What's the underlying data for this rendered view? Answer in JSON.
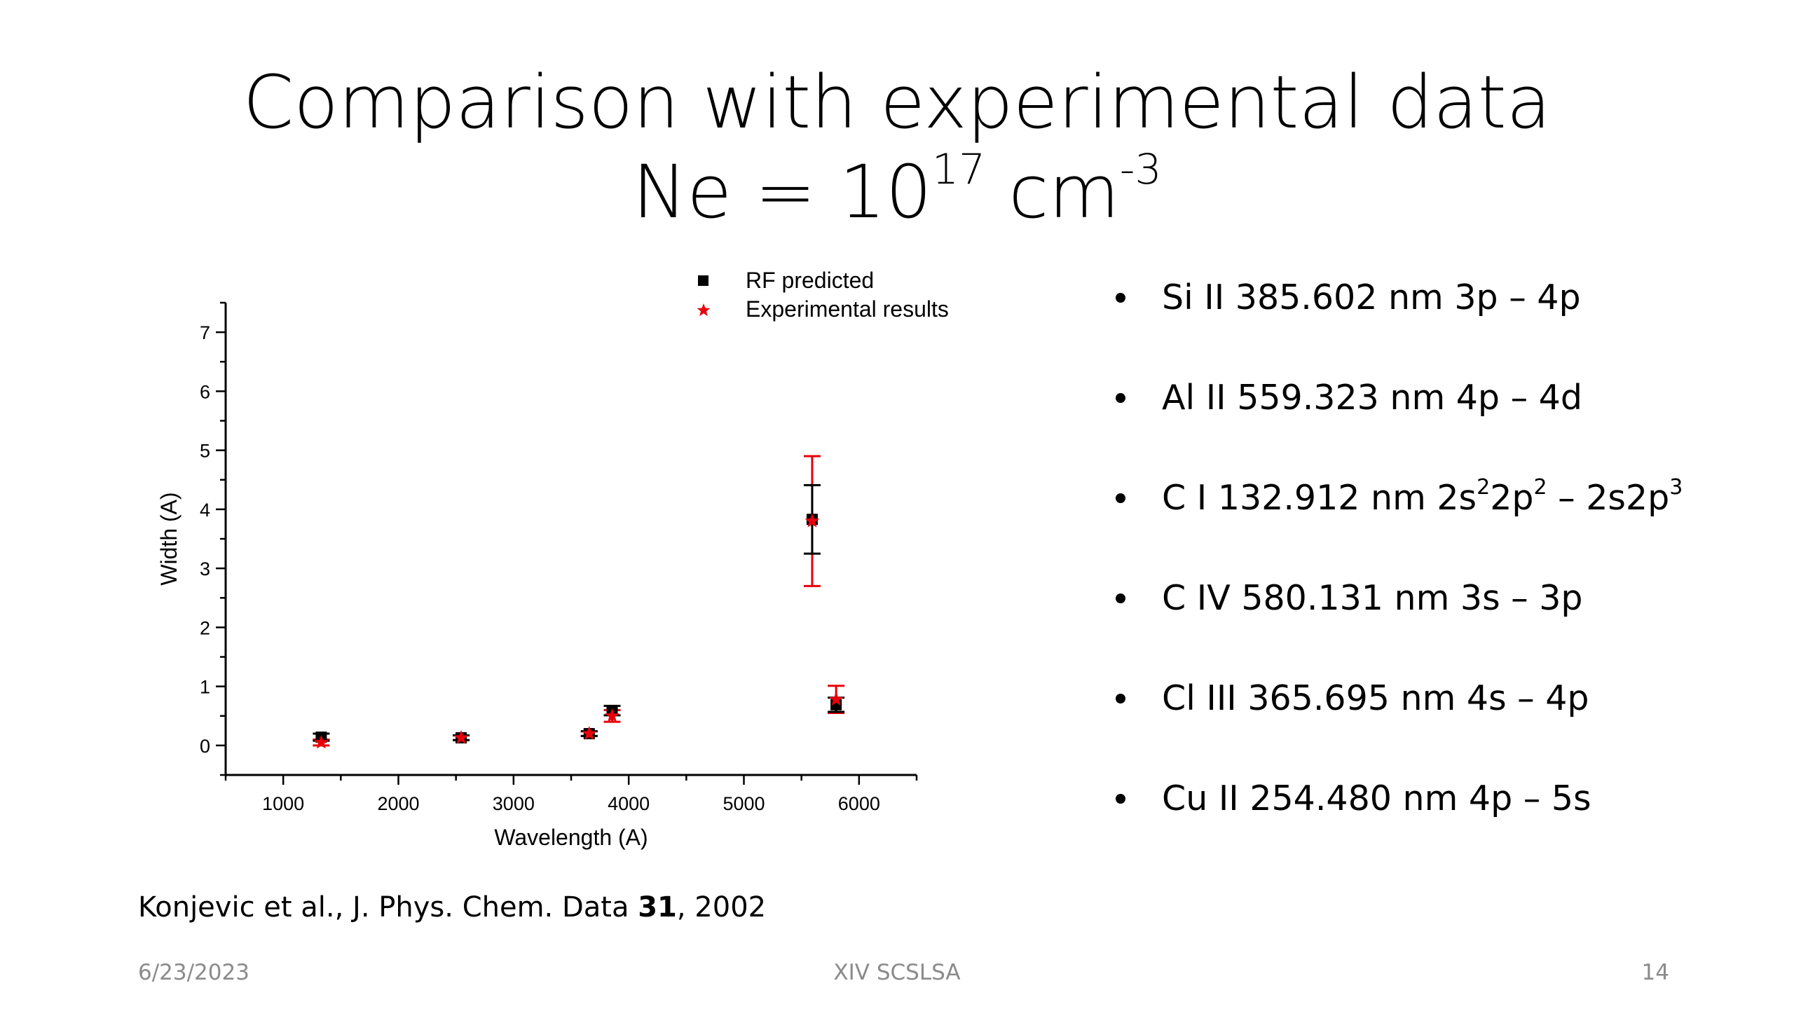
{
  "slide": {
    "title_line1": "Comparison with experimental data",
    "title_line2_prefix": "Ne = 10",
    "title_line2_exp": "17",
    "title_line2_unit": " cm",
    "title_line2_unit_exp": "-3"
  },
  "bullets": [
    {
      "text": "Si II 385.602 nm 3p – 4p"
    },
    {
      "text": "Al II 559.323 nm 4p – 4d"
    },
    {
      "pre": "C I 132.912 nm 2s",
      "sup1": "2",
      "mid": "2p",
      "sup2": "2",
      "post": " – 2s2p",
      "sup3": "3"
    },
    {
      "text": "C IV 580.131 nm 3s – 3p"
    },
    {
      "text": "Cl III 365.695 nm 4s – 4p"
    },
    {
      "text": "Cu II 254.480 nm 4p – 5s"
    }
  ],
  "citation": {
    "prefix": "Konjevic et al., J. Phys. Chem. Data ",
    "volume": "31",
    "suffix": ", 2002"
  },
  "footer": {
    "date": "6/23/2023",
    "event": "XIV SCSLSA",
    "page": "14"
  },
  "chart_data": {
    "type": "scatter",
    "xlabel": "Wavelength (A)",
    "ylabel": "Width (A)",
    "xlim": [
      500,
      6500
    ],
    "ylim": [
      -0.5,
      7.5
    ],
    "xticks": [
      1000,
      2000,
      3000,
      4000,
      5000,
      6000
    ],
    "yticks": [
      0,
      1,
      2,
      3,
      4,
      5,
      6,
      7
    ],
    "grid": false,
    "legend_position": "top-right",
    "colors": {
      "predicted": "#000000",
      "experimental": "#e8000b"
    },
    "series": [
      {
        "name": "RF predicted",
        "marker": "square",
        "points": [
          {
            "x": 1330,
            "y": 0.14,
            "err": 0.06
          },
          {
            "x": 2545,
            "y": 0.13,
            "err": 0.04
          },
          {
            "x": 3657,
            "y": 0.2,
            "err": 0.04
          },
          {
            "x": 3856,
            "y": 0.59,
            "err": 0.08
          },
          {
            "x": 5593,
            "y": 3.83,
            "err": 0.58
          },
          {
            "x": 5801,
            "y": 0.69,
            "err": 0.12
          }
        ]
      },
      {
        "name": "Experimental results",
        "marker": "star",
        "points": [
          {
            "x": 1330,
            "y": 0.05,
            "err": 0.05
          },
          {
            "x": 2545,
            "y": 0.13,
            "err": 0.04
          },
          {
            "x": 3657,
            "y": 0.2,
            "err": 0.04
          },
          {
            "x": 3856,
            "y": 0.5,
            "err": 0.1
          },
          {
            "x": 5593,
            "y": 3.8,
            "err": 1.1
          },
          {
            "x": 5801,
            "y": 0.78,
            "err": 0.23
          }
        ]
      }
    ]
  }
}
